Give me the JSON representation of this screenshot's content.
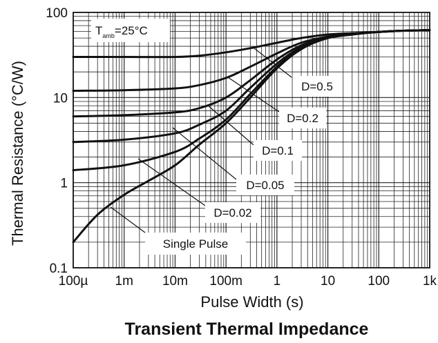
{
  "chart_data": {
    "type": "line",
    "title": "Transient Thermal Impedance",
    "xlabel": "Pulse Width (s)",
    "ylabel": "Thermal Resistance (°C/W)",
    "x_scale": "log",
    "y_scale": "log",
    "xlim": [
      0.0001,
      1000
    ],
    "ylim": [
      0.1,
      100
    ],
    "x_ticks": [
      {
        "value": 0.0001,
        "label": "100µ"
      },
      {
        "value": 0.001,
        "label": "1m"
      },
      {
        "value": 0.01,
        "label": "10m"
      },
      {
        "value": 0.1,
        "label": "100m"
      },
      {
        "value": 1,
        "label": "1"
      },
      {
        "value": 10,
        "label": "10"
      },
      {
        "value": 100,
        "label": "100"
      },
      {
        "value": 1000,
        "label": "1k"
      }
    ],
    "y_ticks": [
      {
        "value": 0.1,
        "label": "0.1"
      },
      {
        "value": 1,
        "label": "1"
      },
      {
        "value": 10,
        "label": "10"
      },
      {
        "value": 100,
        "label": "100"
      }
    ],
    "grid": true,
    "condition": {
      "main": "T",
      "sub": "amb",
      "rest": "=25°C"
    },
    "series": [
      {
        "name": "D=0.5",
        "points": [
          [
            0.0001,
            30
          ],
          [
            0.001,
            30
          ],
          [
            0.01,
            30
          ],
          [
            0.03,
            31
          ],
          [
            0.1,
            34
          ],
          [
            0.3,
            38
          ],
          [
            1,
            44
          ],
          [
            3,
            50
          ],
          [
            10,
            55
          ],
          [
            30,
            57
          ],
          [
            100,
            59
          ],
          [
            300,
            61
          ],
          [
            1000,
            62
          ]
        ]
      },
      {
        "name": "D=0.2",
        "points": [
          [
            0.0001,
            12
          ],
          [
            0.001,
            12.2
          ],
          [
            0.01,
            12.8
          ],
          [
            0.03,
            14
          ],
          [
            0.1,
            17
          ],
          [
            0.3,
            23
          ],
          [
            1,
            33
          ],
          [
            3,
            44
          ],
          [
            10,
            52
          ],
          [
            30,
            56
          ],
          [
            100,
            59
          ],
          [
            300,
            61
          ],
          [
            1000,
            62
          ]
        ]
      },
      {
        "name": "D=0.1",
        "points": [
          [
            0.0001,
            6
          ],
          [
            0.001,
            6.2
          ],
          [
            0.01,
            6.7
          ],
          [
            0.03,
            7.5
          ],
          [
            0.1,
            10
          ],
          [
            0.3,
            16
          ],
          [
            1,
            28
          ],
          [
            3,
            41
          ],
          [
            10,
            51
          ],
          [
            30,
            56
          ],
          [
            100,
            59
          ],
          [
            300,
            61
          ],
          [
            1000,
            62
          ]
        ]
      },
      {
        "name": "D=0.05",
        "points": [
          [
            0.0001,
            3
          ],
          [
            0.001,
            3.2
          ],
          [
            0.01,
            3.8
          ],
          [
            0.03,
            4.8
          ],
          [
            0.1,
            7
          ],
          [
            0.3,
            13
          ],
          [
            1,
            25
          ],
          [
            3,
            39
          ],
          [
            10,
            50
          ],
          [
            30,
            55
          ],
          [
            100,
            59
          ],
          [
            300,
            61
          ],
          [
            1000,
            62
          ]
        ]
      },
      {
        "name": "D=0.02",
        "points": [
          [
            0.0001,
            1.4
          ],
          [
            0.001,
            1.6
          ],
          [
            0.01,
            2.3
          ],
          [
            0.03,
            3.3
          ],
          [
            0.1,
            5.5
          ],
          [
            0.3,
            11
          ],
          [
            1,
            23
          ],
          [
            3,
            38
          ],
          [
            10,
            50
          ],
          [
            30,
            55
          ],
          [
            100,
            59
          ],
          [
            300,
            61
          ],
          [
            1000,
            62
          ]
        ]
      },
      {
        "name": "Single Pulse",
        "points": [
          [
            0.0001,
            0.2
          ],
          [
            0.0003,
            0.42
          ],
          [
            0.001,
            0.72
          ],
          [
            0.003,
            1.05
          ],
          [
            0.01,
            1.6
          ],
          [
            0.03,
            2.8
          ],
          [
            0.1,
            5
          ],
          [
            0.3,
            10
          ],
          [
            1,
            22
          ],
          [
            3,
            37
          ],
          [
            10,
            50
          ],
          [
            30,
            55
          ],
          [
            100,
            59
          ],
          [
            300,
            61
          ],
          [
            1000,
            62
          ]
        ]
      }
    ]
  }
}
